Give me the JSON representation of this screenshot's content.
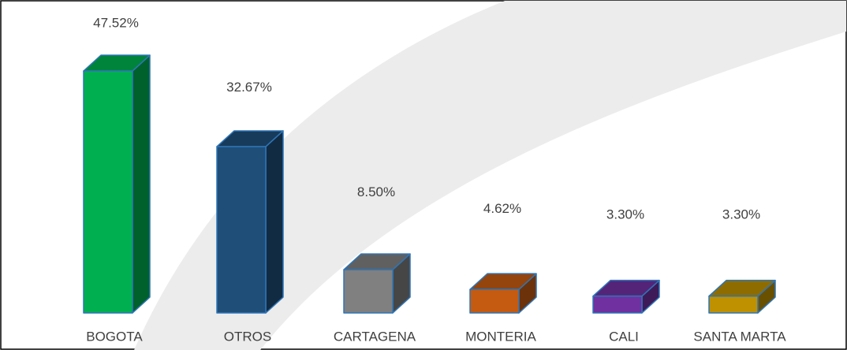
{
  "chart_data": {
    "type": "bar3d",
    "categories": [
      "BOGOTA",
      "OTROS",
      "CARTAGENA",
      "MONTERIA",
      "CALI",
      "SANTA MARTA"
    ],
    "values": [
      47.52,
      32.67,
      8.5,
      4.62,
      3.3,
      3.3
    ],
    "value_labels": [
      "47.52%",
      "32.67%",
      "8.50%",
      "4.62%",
      "3.30%",
      "3.30%"
    ],
    "colors": [
      "#00b050",
      "#1f4e79",
      "#808080",
      "#c55a11",
      "#7030a0",
      "#bf9000"
    ]
  }
}
